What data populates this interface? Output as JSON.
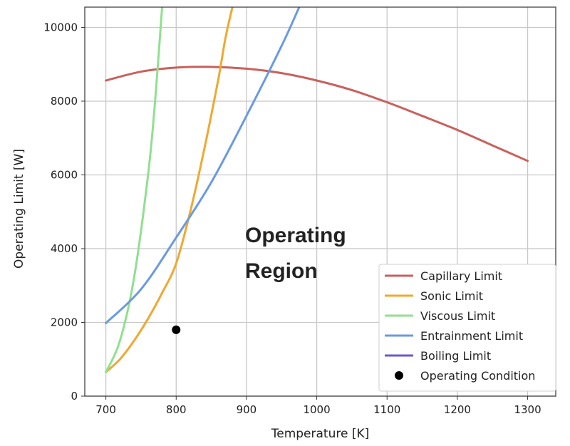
{
  "chart_data": {
    "type": "line",
    "title": "",
    "xlabel": "Temperature [K]",
    "ylabel": "Operating Limit [W]",
    "xlim": [
      670,
      1340
    ],
    "ylim": [
      0,
      10550
    ],
    "xticks": [
      700,
      800,
      900,
      1000,
      1100,
      1200,
      1300
    ],
    "yticks": [
      0,
      2000,
      4000,
      6000,
      8000,
      10000
    ],
    "grid": true,
    "legend_position": "lower-right",
    "annotation": "Operating\nRegion",
    "series": [
      {
        "name": "Capillary Limit",
        "color": "#c9605c",
        "x": [
          700,
          750,
          800,
          850,
          900,
          950,
          1000,
          1050,
          1100,
          1150,
          1200,
          1250,
          1300
        ],
        "y": [
          8560,
          8800,
          8910,
          8930,
          8880,
          8760,
          8560,
          8300,
          7970,
          7600,
          7220,
          6800,
          6380
        ]
      },
      {
        "name": "Sonic Limit",
        "color": "#f0a830",
        "x": [
          700,
          720,
          740,
          760,
          780,
          800,
          820,
          840,
          860,
          870,
          880
        ],
        "y": [
          650,
          1000,
          1500,
          2100,
          2800,
          3600,
          5000,
          6700,
          8600,
          9700,
          10550
        ]
      },
      {
        "name": "Viscous Limit",
        "color": "#90e090",
        "x": [
          700,
          720,
          740,
          760,
          770,
          780
        ],
        "y": [
          650,
          1500,
          3200,
          6000,
          8000,
          10550
        ]
      },
      {
        "name": "Entrainment Limit",
        "color": "#6a9ae0",
        "x": [
          700,
          750,
          800,
          850,
          900,
          950,
          975
        ],
        "y": [
          1980,
          2900,
          4300,
          5800,
          7600,
          9500,
          10550
        ]
      },
      {
        "name": "Boiling Limit",
        "color": "#6a5acd",
        "x": [],
        "y": []
      }
    ],
    "points": [
      {
        "name": "Operating Condition",
        "color": "#000000",
        "x": 800,
        "y": 1800
      }
    ]
  }
}
